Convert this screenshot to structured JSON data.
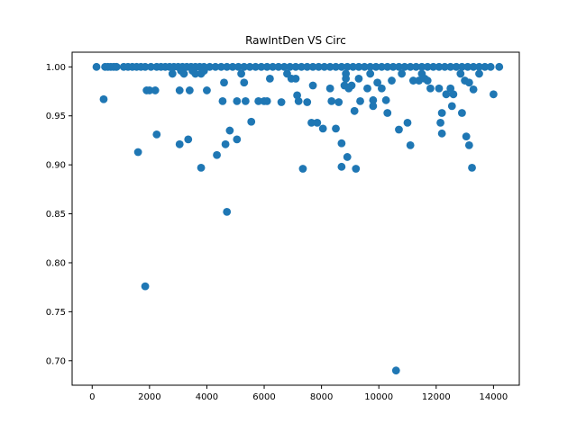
{
  "chart_data": {
    "type": "scatter",
    "title": "RawIntDen VS Circ",
    "xlabel": "",
    "ylabel": "",
    "xlim": [
      -700,
      14900
    ],
    "ylim": [
      0.675,
      1.015
    ],
    "xticks": [
      0,
      2000,
      4000,
      6000,
      8000,
      10000,
      12000,
      14000
    ],
    "xtick_labels": [
      "0",
      "2000",
      "4000",
      "6000",
      "8000",
      "10000",
      "12000",
      "14000"
    ],
    "yticks": [
      0.7,
      0.75,
      0.8,
      0.85,
      0.9,
      0.95,
      1.0
    ],
    "ytick_labels": [
      "0.70",
      "0.75",
      "0.80",
      "0.85",
      "0.90",
      "0.95",
      "1.00"
    ],
    "grid": false,
    "marker_color": "#1f77b4",
    "series": [
      {
        "points": [
          [
            150,
            1.0
          ],
          [
            450,
            1.0
          ],
          [
            550,
            1.0
          ],
          [
            650,
            1.0
          ],
          [
            750,
            1.0
          ],
          [
            850,
            1.0
          ],
          [
            1100,
            1.0
          ],
          [
            1250,
            1.0
          ],
          [
            1400,
            1.0
          ],
          [
            1550,
            1.0
          ],
          [
            1700,
            1.0
          ],
          [
            1850,
            1.0
          ],
          [
            2050,
            1.0
          ],
          [
            2250,
            1.0
          ],
          [
            2400,
            1.0
          ],
          [
            2550,
            1.0
          ],
          [
            2700,
            1.0
          ],
          [
            2850,
            1.0
          ],
          [
            3000,
            1.0
          ],
          [
            3150,
            1.0
          ],
          [
            3300,
            1.0
          ],
          [
            3450,
            1.0
          ],
          [
            3600,
            1.0
          ],
          [
            3750,
            1.0
          ],
          [
            3900,
            1.0
          ],
          [
            4100,
            1.0
          ],
          [
            4300,
            1.0
          ],
          [
            4500,
            1.0
          ],
          [
            4700,
            1.0
          ],
          [
            4900,
            1.0
          ],
          [
            5100,
            1.0
          ],
          [
            5300,
            1.0
          ],
          [
            5500,
            1.0
          ],
          [
            5700,
            1.0
          ],
          [
            5900,
            1.0
          ],
          [
            6100,
            1.0
          ],
          [
            6300,
            1.0
          ],
          [
            6500,
            1.0
          ],
          [
            6700,
            1.0
          ],
          [
            6900,
            1.0
          ],
          [
            7100,
            1.0
          ],
          [
            7300,
            1.0
          ],
          [
            7500,
            1.0
          ],
          [
            7700,
            1.0
          ],
          [
            7900,
            1.0
          ],
          [
            8100,
            1.0
          ],
          [
            8300,
            1.0
          ],
          [
            8500,
            1.0
          ],
          [
            8700,
            1.0
          ],
          [
            8900,
            1.0
          ],
          [
            9100,
            1.0
          ],
          [
            9300,
            1.0
          ],
          [
            9500,
            1.0
          ],
          [
            9700,
            1.0
          ],
          [
            9900,
            1.0
          ],
          [
            10100,
            1.0
          ],
          [
            10300,
            1.0
          ],
          [
            10500,
            1.0
          ],
          [
            10700,
            1.0
          ],
          [
            10900,
            1.0
          ],
          [
            11100,
            1.0
          ],
          [
            11300,
            1.0
          ],
          [
            11500,
            1.0
          ],
          [
            11700,
            1.0
          ],
          [
            11900,
            1.0
          ],
          [
            12100,
            1.0
          ],
          [
            12300,
            1.0
          ],
          [
            12500,
            1.0
          ],
          [
            12700,
            1.0
          ],
          [
            12900,
            1.0
          ],
          [
            13100,
            1.0
          ],
          [
            13300,
            1.0
          ],
          [
            13500,
            1.0
          ],
          [
            13700,
            1.0
          ],
          [
            13900,
            1.0
          ],
          [
            14200,
            1.0
          ],
          [
            400,
            0.967
          ],
          [
            1600,
            0.913
          ],
          [
            1850,
            0.776
          ],
          [
            1900,
            0.976
          ],
          [
            2000,
            0.976
          ],
          [
            2200,
            0.976
          ],
          [
            2250,
            0.931
          ],
          [
            2800,
            0.993
          ],
          [
            3050,
            0.976
          ],
          [
            3050,
            0.921
          ],
          [
            3100,
            0.996
          ],
          [
            3200,
            0.993
          ],
          [
            3350,
            0.926
          ],
          [
            3400,
            0.976
          ],
          [
            3500,
            0.996
          ],
          [
            3600,
            0.993
          ],
          [
            3800,
            0.993
          ],
          [
            3800,
            0.897
          ],
          [
            3900,
            0.996
          ],
          [
            4000,
            0.976
          ],
          [
            4350,
            0.91
          ],
          [
            4550,
            0.965
          ],
          [
            4600,
            0.984
          ],
          [
            4650,
            0.921
          ],
          [
            4700,
            0.852
          ],
          [
            4800,
            0.935
          ],
          [
            5050,
            0.965
          ],
          [
            5050,
            0.926
          ],
          [
            5200,
            0.993
          ],
          [
            5300,
            0.984
          ],
          [
            5350,
            0.965
          ],
          [
            5550,
            0.944
          ],
          [
            5800,
            0.965
          ],
          [
            6000,
            0.965
          ],
          [
            6100,
            0.965
          ],
          [
            6200,
            0.988
          ],
          [
            6600,
            0.964
          ],
          [
            6800,
            0.993
          ],
          [
            6950,
            0.988
          ],
          [
            7100,
            0.988
          ],
          [
            7150,
            0.971
          ],
          [
            7200,
            0.965
          ],
          [
            7350,
            0.896
          ],
          [
            7500,
            0.964
          ],
          [
            7650,
            0.943
          ],
          [
            7700,
            0.981
          ],
          [
            7850,
            0.943
          ],
          [
            8050,
            0.937
          ],
          [
            8300,
            0.978
          ],
          [
            8350,
            0.965
          ],
          [
            8500,
            0.937
          ],
          [
            8600,
            0.964
          ],
          [
            8700,
            0.922
          ],
          [
            8700,
            0.898
          ],
          [
            8800,
            0.981
          ],
          [
            8850,
            0.993
          ],
          [
            8850,
            0.988
          ],
          [
            8900,
            0.908
          ],
          [
            8950,
            0.978
          ],
          [
            9050,
            0.981
          ],
          [
            9150,
            0.955
          ],
          [
            9200,
            0.896
          ],
          [
            9300,
            0.988
          ],
          [
            9350,
            0.965
          ],
          [
            9600,
            0.978
          ],
          [
            9700,
            0.993
          ],
          [
            9800,
            0.966
          ],
          [
            9800,
            0.96
          ],
          [
            9950,
            0.984
          ],
          [
            10100,
            0.978
          ],
          [
            10250,
            0.966
          ],
          [
            10300,
            0.953
          ],
          [
            10450,
            0.986
          ],
          [
            10600,
            0.69
          ],
          [
            10700,
            0.936
          ],
          [
            10800,
            0.993
          ],
          [
            11000,
            0.943
          ],
          [
            11100,
            0.92
          ],
          [
            11200,
            0.986
          ],
          [
            11400,
            0.986
          ],
          [
            11500,
            0.993
          ],
          [
            11600,
            0.988
          ],
          [
            11700,
            0.986
          ],
          [
            11800,
            0.978
          ],
          [
            12100,
            0.978
          ],
          [
            12150,
            0.943
          ],
          [
            12200,
            0.932
          ],
          [
            12200,
            0.953
          ],
          [
            12350,
            0.972
          ],
          [
            12500,
            0.978
          ],
          [
            12550,
            0.96
          ],
          [
            12600,
            0.972
          ],
          [
            12850,
            0.993
          ],
          [
            12900,
            0.953
          ],
          [
            13000,
            0.986
          ],
          [
            13050,
            0.929
          ],
          [
            13150,
            0.92
          ],
          [
            13150,
            0.984
          ],
          [
            13250,
            0.897
          ],
          [
            13300,
            0.977
          ],
          [
            13500,
            0.993
          ],
          [
            14000,
            0.972
          ]
        ]
      }
    ]
  }
}
